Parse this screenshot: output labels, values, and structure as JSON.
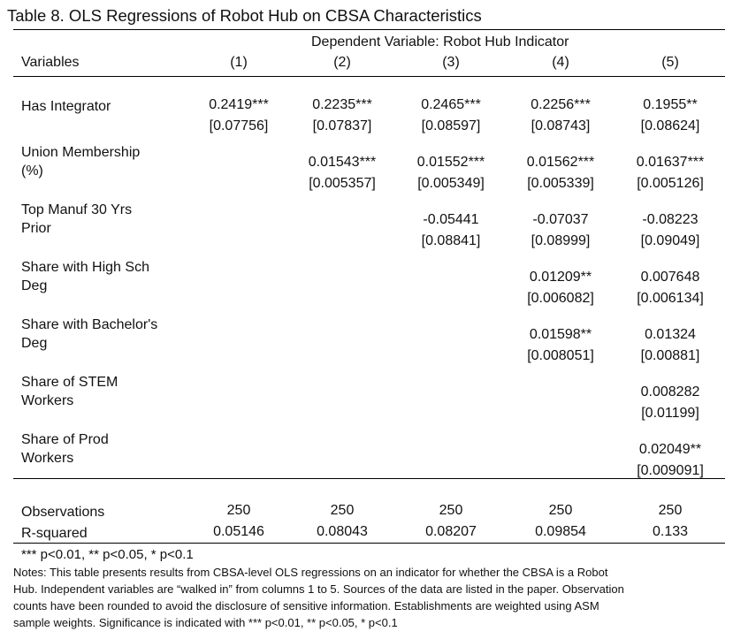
{
  "title": "Table 8. OLS Regressions of Robot Hub on CBSA Characteristics",
  "dependent_variable": "Dependent Variable: Robot Hub Indicator",
  "variables_header": "Variables",
  "columns": [
    "(1)",
    "(2)",
    "(3)",
    "(4)",
    "(5)"
  ],
  "rows": [
    {
      "label": [
        "Has Integrator"
      ],
      "coef": [
        "0.2419***",
        "0.2235***",
        "0.2465***",
        "0.2256***",
        "0.1955**"
      ],
      "se": [
        "[0.07756]",
        "[0.07837]",
        "[0.08597]",
        "[0.08743]",
        "[0.08624]"
      ]
    },
    {
      "label": [
        "Union Membership",
        "(%)"
      ],
      "coef": [
        "",
        "0.01543***",
        "0.01552***",
        "0.01562***",
        "0.01637***"
      ],
      "se": [
        "",
        "[0.005357]",
        "[0.005349]",
        "[0.005339]",
        "[0.005126]"
      ]
    },
    {
      "label": [
        "Top Manuf 30 Yrs",
        "Prior"
      ],
      "coef": [
        "",
        "",
        "-0.05441",
        "-0.07037",
        "-0.08223"
      ],
      "se": [
        "",
        "",
        "[0.08841]",
        "[0.08999]",
        "[0.09049]"
      ]
    },
    {
      "label": [
        "Share with High Sch",
        "Deg"
      ],
      "coef": [
        "",
        "",
        "",
        "0.01209**",
        "0.007648"
      ],
      "se": [
        "",
        "",
        "",
        "[0.006082]",
        "[0.006134]"
      ]
    },
    {
      "label": [
        "Share with Bachelor's",
        "Deg"
      ],
      "coef": [
        "",
        "",
        "",
        "0.01598**",
        "0.01324"
      ],
      "se": [
        "",
        "",
        "",
        "[0.008051]",
        "[0.00881]"
      ]
    },
    {
      "label": [
        "Share of STEM",
        "Workers"
      ],
      "coef": [
        "",
        "",
        "",
        "",
        "0.008282"
      ],
      "se": [
        "",
        "",
        "",
        "",
        "[0.01199]"
      ]
    },
    {
      "label": [
        "Share of Prod",
        "Workers"
      ],
      "coef": [
        "",
        "",
        "",
        "",
        "0.02049**"
      ],
      "se": [
        "",
        "",
        "",
        "",
        "[0.009091]"
      ]
    }
  ],
  "stats": [
    {
      "label": "Observations",
      "values": [
        "250",
        "250",
        "250",
        "250",
        "250"
      ]
    },
    {
      "label": "R-squared",
      "values": [
        "0.05146",
        "0.08043",
        "0.08207",
        "0.09854",
        "0.133"
      ]
    }
  ],
  "significance": "*** p<0.01, ** p<0.05, * p<0.1",
  "notes": [
    "Notes: This table presents results from CBSA-level OLS regressions on an indicator for whether the CBSA is a Robot",
    "Hub. Independent variables are “walked in” from columns 1 to 5. Sources of the data are listed in the paper. Observation",
    "counts have been rounded to avoid the disclosure of sensitive information. Establishments are weighted using ASM",
    "sample weights. Significance is indicated with *** p<0.01, ** p<0.05, * p<0.1"
  ]
}
